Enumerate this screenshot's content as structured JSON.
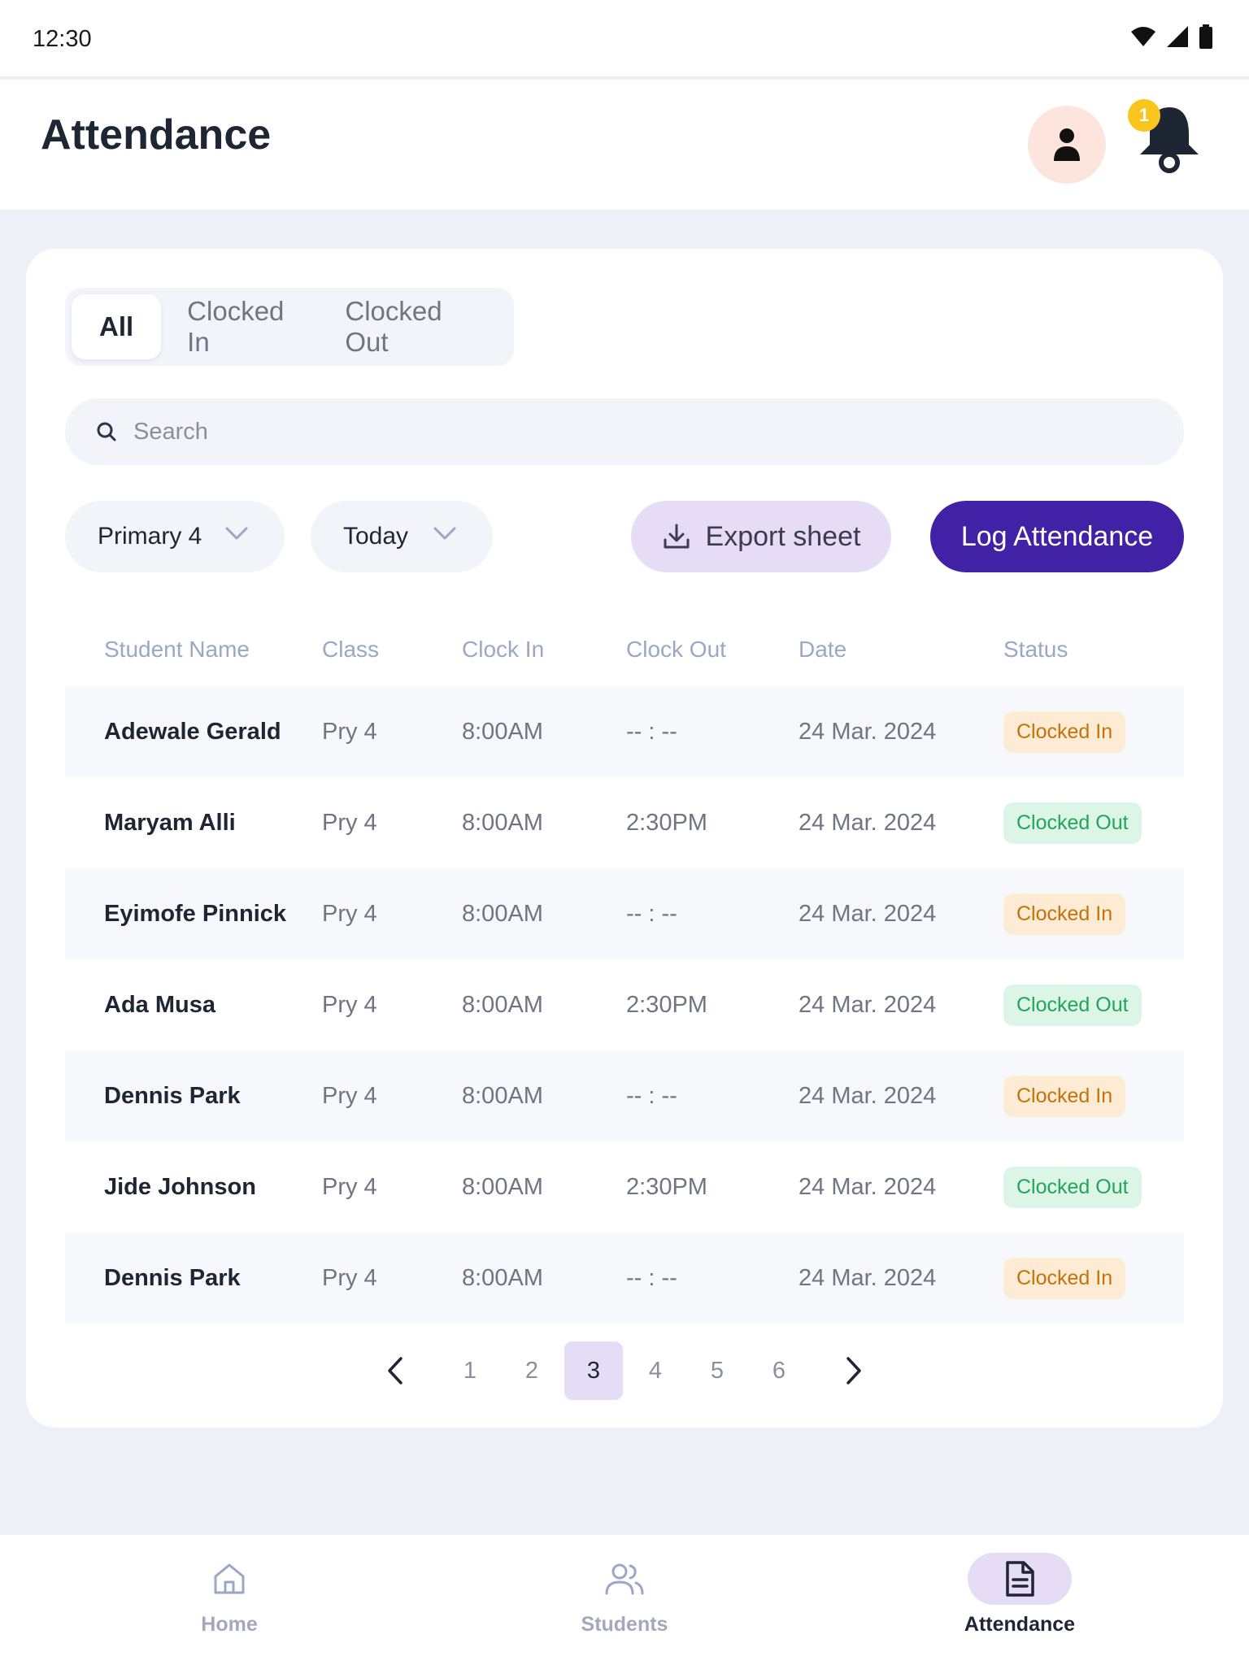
{
  "status_bar": {
    "time": "12:30"
  },
  "header": {
    "title": "Attendance",
    "notification_count": "1"
  },
  "tabs": [
    {
      "label": "All",
      "active": true
    },
    {
      "label": "Clocked In",
      "active": false
    },
    {
      "label": "Clocked Out",
      "active": false
    }
  ],
  "search": {
    "placeholder": "Search",
    "value": ""
  },
  "filters": {
    "class": "Primary 4",
    "date": "Today"
  },
  "actions": {
    "export": "Export sheet",
    "log": "Log Attendance"
  },
  "table": {
    "columns": [
      "Student Name",
      "Class",
      "Clock In",
      "Clock Out",
      "Date",
      "Status"
    ],
    "rows": [
      {
        "name": "Adewale Gerald",
        "class": "Pry 4",
        "clock_in": "8:00AM",
        "clock_out": "-- : --",
        "date": "24 Mar. 2024",
        "status": "Clocked In"
      },
      {
        "name": "Maryam Alli",
        "class": "Pry 4",
        "clock_in": "8:00AM",
        "clock_out": "2:30PM",
        "date": "24 Mar. 2024",
        "status": "Clocked Out"
      },
      {
        "name": "Eyimofe Pinnick",
        "class": "Pry 4",
        "clock_in": "8:00AM",
        "clock_out": "-- : --",
        "date": "24 Mar. 2024",
        "status": "Clocked In"
      },
      {
        "name": "Ada Musa",
        "class": "Pry 4",
        "clock_in": "8:00AM",
        "clock_out": "2:30PM",
        "date": "24 Mar. 2024",
        "status": "Clocked Out"
      },
      {
        "name": "Dennis Park",
        "class": "Pry 4",
        "clock_in": "8:00AM",
        "clock_out": "-- : --",
        "date": "24 Mar. 2024",
        "status": "Clocked In"
      },
      {
        "name": "Jide Johnson",
        "class": "Pry 4",
        "clock_in": "8:00AM",
        "clock_out": "2:30PM",
        "date": "24 Mar. 2024",
        "status": "Clocked Out"
      },
      {
        "name": "Dennis Park",
        "class": "Pry 4",
        "clock_in": "8:00AM",
        "clock_out": "-- : --",
        "date": "24 Mar. 2024",
        "status": "Clocked In"
      }
    ]
  },
  "pagination": {
    "pages": [
      "1",
      "2",
      "3",
      "4",
      "5",
      "6"
    ],
    "current": "3"
  },
  "bottom_nav": [
    {
      "label": "Home",
      "icon": "home-icon",
      "active": false
    },
    {
      "label": "Students",
      "icon": "users-icon",
      "active": false
    },
    {
      "label": "Attendance",
      "icon": "document-icon",
      "active": true
    }
  ],
  "colors": {
    "primary": "#4122a6",
    "accent_light": "#e7dcf6",
    "clocked_in_bg": "#fdecd3",
    "clocked_in_text": "#c4730c",
    "clocked_out_bg": "#dcf5e6",
    "clocked_out_text": "#22a559",
    "badge": "#f7c51e"
  }
}
